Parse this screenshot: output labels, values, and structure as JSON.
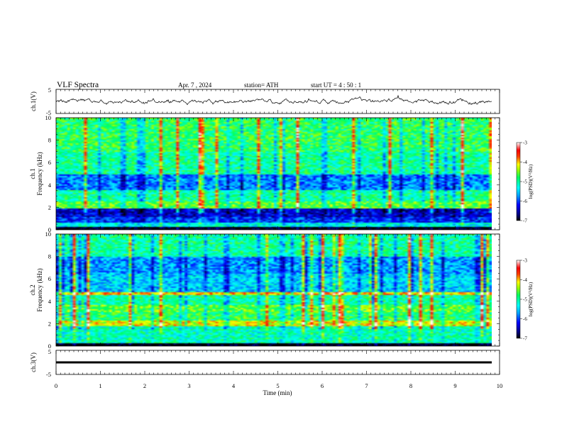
{
  "header": {
    "title": "VLF  Spectra",
    "date": "Apr. 7  , 2024",
    "station": "station= ATH",
    "start": "start  UT  =   4  : 50 : 1"
  },
  "chart_data": [
    {
      "type": "line",
      "ylabel": "ch.1(V)",
      "ylim": [
        -5,
        5
      ],
      "yticks": [
        "5",
        "-5"
      ],
      "xlim": [
        0,
        10
      ],
      "description_level": "noisy signal near 0 V"
    },
    {
      "type": "heatmap",
      "ylabel": "ch.1\nFrequency  (kHz)",
      "ylabel_lines": [
        "ch.1",
        "Frequency  (kHz)"
      ],
      "ylim": [
        0,
        10
      ],
      "yticks": [
        "0",
        "2",
        "4",
        "6",
        "8",
        "10"
      ],
      "xlim": [
        0,
        10
      ],
      "colorbar": {
        "label": "log(PSD)(V²/Hz)",
        "ticks": [
          "-3",
          "-4",
          "-5",
          "-6",
          "-7"
        ],
        "range": [
          -7,
          -3
        ]
      }
    },
    {
      "type": "heatmap",
      "ylabel_lines": [
        "ch.2",
        "Frequency  (kHz)"
      ],
      "ylim": [
        0,
        10
      ],
      "yticks": [
        "0",
        "2",
        "4",
        "6",
        "8",
        "10"
      ],
      "xlim": [
        0,
        10
      ],
      "colorbar": {
        "label": "log(PSD)(V²/Hz)",
        "ticks": [
          "-3",
          "-4",
          "-5",
          "-6",
          "-7"
        ],
        "range": [
          -7,
          -3
        ]
      }
    },
    {
      "type": "line",
      "ylabel": "ch.3(V)",
      "ylim": [
        -5,
        5
      ],
      "yticks": [
        "5",
        "-5"
      ],
      "xlim": [
        0,
        10
      ],
      "description_level": "flat near -1.5 V"
    }
  ],
  "xaxis": {
    "label": "Time  (min)",
    "ticks": [
      "0",
      "1",
      "2",
      "3",
      "4",
      "5",
      "6",
      "7",
      "8",
      "9",
      "10"
    ]
  }
}
